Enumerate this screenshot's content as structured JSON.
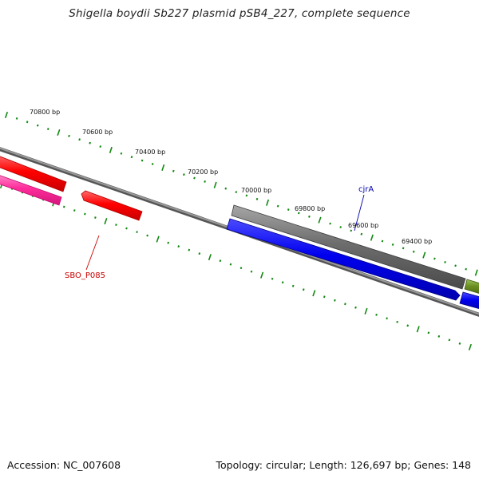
{
  "title": "Shigella boydii Sb227 plasmid pSB4_227, complete sequence",
  "footer": {
    "accession": "Accession: NC_007608",
    "summary": "Topology: circular; Length: 126,697 bp; Genes: 148"
  },
  "map": {
    "topology": "circular",
    "length_bp": 126697,
    "gene_count": 148,
    "ruler_labels": [
      "70800 bp",
      "70600 bp",
      "70400 bp",
      "70200 bp",
      "70000 bp",
      "69800 bp",
      "69600 bp",
      "69400 bp"
    ],
    "gene_labels": [
      {
        "name": "SBO_P085",
        "color": "#cc0000"
      },
      {
        "name": "cjrA",
        "color": "#0000aa"
      }
    ],
    "feature_colors": {
      "red": "#ff0000",
      "magenta": "#ff2d9b",
      "gray": "#6e6e6e",
      "blue": "#0000ee",
      "olive": "#6b8e23",
      "backbone": "#808080",
      "ticks": "#118811"
    }
  }
}
